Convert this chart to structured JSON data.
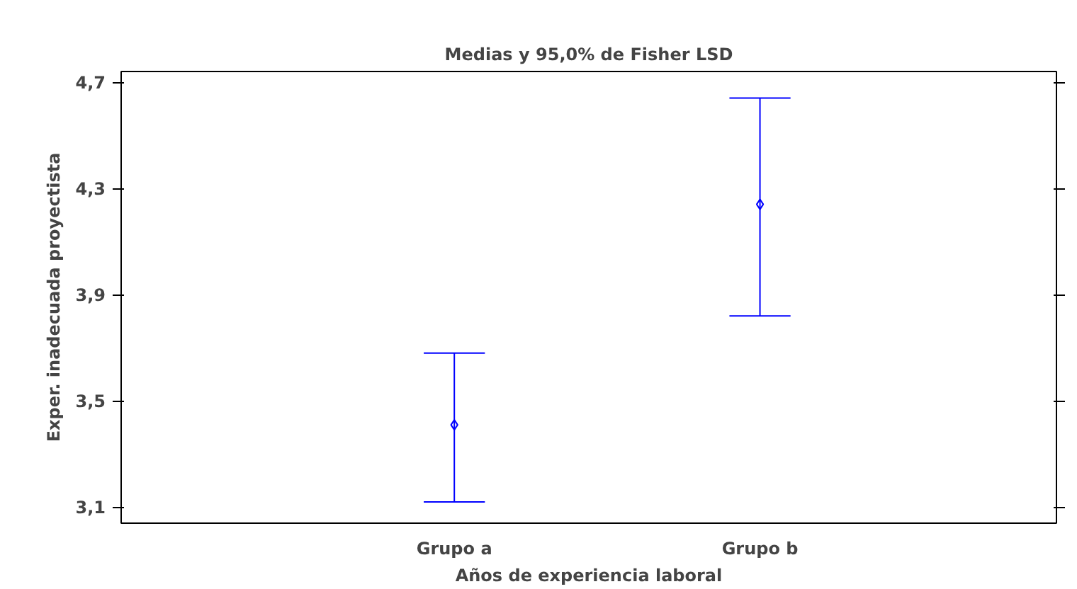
{
  "chart_data": {
    "type": "scatter",
    "title": "Medias y 95,0% de Fisher LSD",
    "xlabel": "Años de experiencia laboral",
    "ylabel": "Exper. inadecuada proyectista",
    "categories": [
      "Grupo a",
      "Grupo b"
    ],
    "values": [
      3.41,
      4.24
    ],
    "errors": [
      [
        3.12,
        3.68
      ],
      [
        3.82,
        4.64
      ]
    ],
    "color": "#0000ff",
    "marker": "diamond",
    "grid": false,
    "ylim": [
      3.04,
      4.74
    ],
    "yticks": [
      {
        "value": 3.1,
        "label": "3,1"
      },
      {
        "value": 3.5,
        "label": "3,5"
      },
      {
        "value": 3.9,
        "label": "3,9"
      },
      {
        "value": 4.3,
        "label": "4,3"
      },
      {
        "value": 4.7,
        "label": "4,7"
      }
    ]
  }
}
